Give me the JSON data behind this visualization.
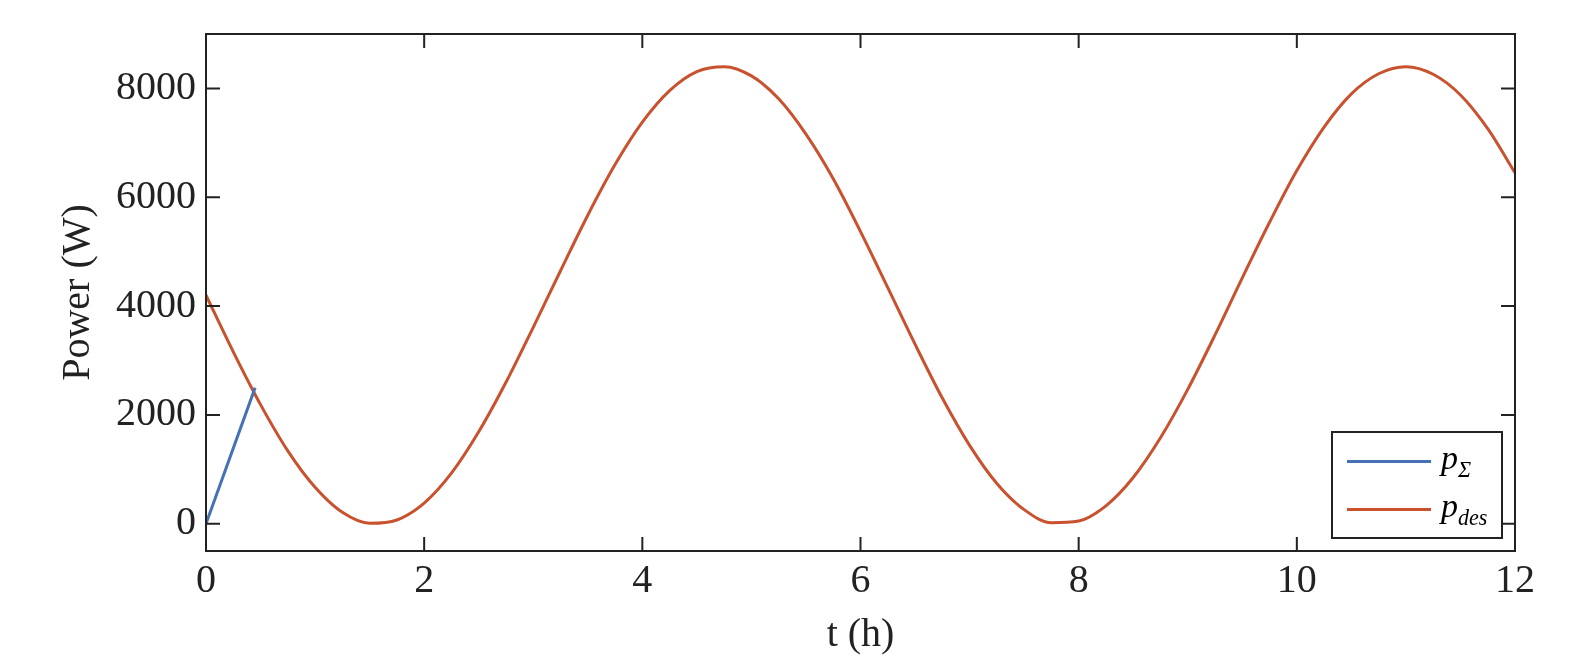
{
  "chart_data": {
    "type": "line",
    "xlabel": "t (h)",
    "ylabel": "Power (W)",
    "xlim": [
      0,
      12
    ],
    "xticks": [
      0,
      2,
      4,
      6,
      8,
      10,
      12
    ],
    "ylim": [
      -500,
      9000
    ],
    "yticks": [
      0,
      2000,
      4000,
      6000,
      8000
    ],
    "grid": false,
    "legend": "bottom right",
    "marker": "none",
    "line_style": "solid",
    "series": [
      {
        "name": "p$_{Σ}$",
        "color": "#4472b4",
        "x": [
          0,
          0.45
        ],
        "values": [
          0,
          2500
        ]
      },
      {
        "name": "p$_{des}$",
        "color": "#c8522e",
        "x": [
          0,
          0.25,
          0.5,
          0.75,
          1,
          1.25,
          1.5,
          1.75,
          2,
          2.25,
          2.5,
          2.75,
          3,
          3.25,
          3.5,
          3.75,
          4,
          4.25,
          4.5,
          4.75,
          5,
          5.25,
          5.5,
          5.75,
          6,
          6.25,
          6.5,
          6.75,
          7,
          7.25,
          7.5,
          7.75,
          8,
          8.25,
          8.5,
          8.75,
          9,
          9.25,
          9.5,
          9.75,
          10,
          10.25,
          10.5,
          10.75,
          11,
          11.25,
          11.5,
          11.75,
          12
        ],
        "values": [
          4200,
          3160,
          2190,
          1340,
          670,
          210,
          10,
          70,
          380,
          930,
          1690,
          2600,
          3610,
          4650,
          5670,
          6600,
          7380,
          7960,
          8310,
          8400,
          8230,
          7810,
          7160,
          6340,
          5370,
          4340,
          3300,
          2310,
          1440,
          740,
          260,
          20,
          50,
          330,
          850,
          1580,
          2470,
          3470,
          4520,
          5540,
          6490,
          7290,
          7900,
          8270,
          8400,
          8260,
          7880,
          7260,
          6450
        ]
      }
    ]
  }
}
